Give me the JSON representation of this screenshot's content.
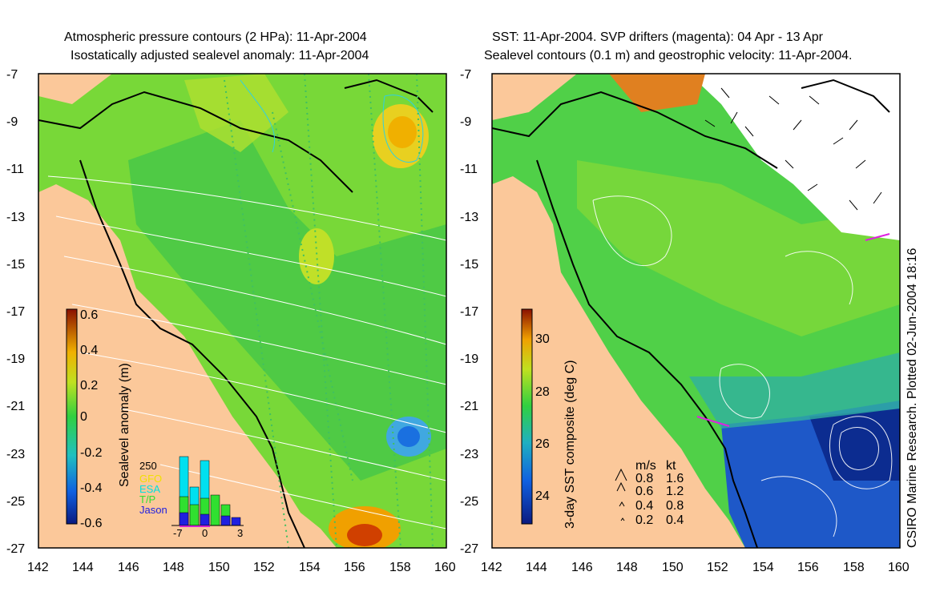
{
  "left_panel": {
    "title_line1": "Atmospheric pressure contours (2 HPa): 11-Apr-2004",
    "title_line2": "Isostatically adjusted sealevel anomaly: 11-Apr-2004",
    "colorbar_label": "Sealevel anomaly (m)",
    "colorbar_ticks": [
      "0.6",
      "0.4",
      "0.2",
      "0",
      "-0.2",
      "-0.4",
      "-0.6"
    ],
    "inset_histogram": {
      "ylabel": "250",
      "legend": [
        {
          "name": "GFO",
          "color": "#f0e000"
        },
        {
          "name": "ESA",
          "color": "#00e0e0"
        },
        {
          "name": "T/P",
          "color": "#30e030"
        },
        {
          "name": "Jason",
          "color": "#2020e0"
        }
      ],
      "x_ticks": [
        "-7",
        "0",
        "3"
      ]
    }
  },
  "right_panel": {
    "title_line1": "SST: 11-Apr-2004. SVP drifters (magenta): 04 Apr - 13 Apr",
    "title_line2": "Sealevel contours (0.1 m) and geostrophic velocity: 11-Apr-2004.",
    "colorbar_label": "3-day SST composite (deg C)",
    "colorbar_ticks": [
      "30",
      "28",
      "26",
      "24"
    ],
    "velocity_legend": {
      "header_ms": "m/s",
      "header_kt": "kt",
      "rows": [
        {
          "ms": "0.8",
          "kt": "1.6"
        },
        {
          "ms": "0.6",
          "kt": "1.2"
        },
        {
          "ms": "0.4",
          "kt": "0.8"
        },
        {
          "ms": "0.2",
          "kt": "0.4"
        }
      ]
    }
  },
  "axes": {
    "y_ticks": [
      "-7",
      "-9",
      "-11",
      "-13",
      "-15",
      "-17",
      "-19",
      "-21",
      "-23",
      "-25",
      "-27"
    ],
    "x_ticks": [
      "142",
      "144",
      "146",
      "148",
      "150",
      "152",
      "154",
      "156",
      "158",
      "160"
    ]
  },
  "credit": "CSIRO Marine Research. Plotted 02-Jun-2004 18:16",
  "colors": {
    "land": "#fbc89a",
    "ocean_green": "#52d24a",
    "ocean_yellowgreen": "#a8e030",
    "deep_blue": "#1050c0",
    "cloud_white": "#ffffff"
  }
}
